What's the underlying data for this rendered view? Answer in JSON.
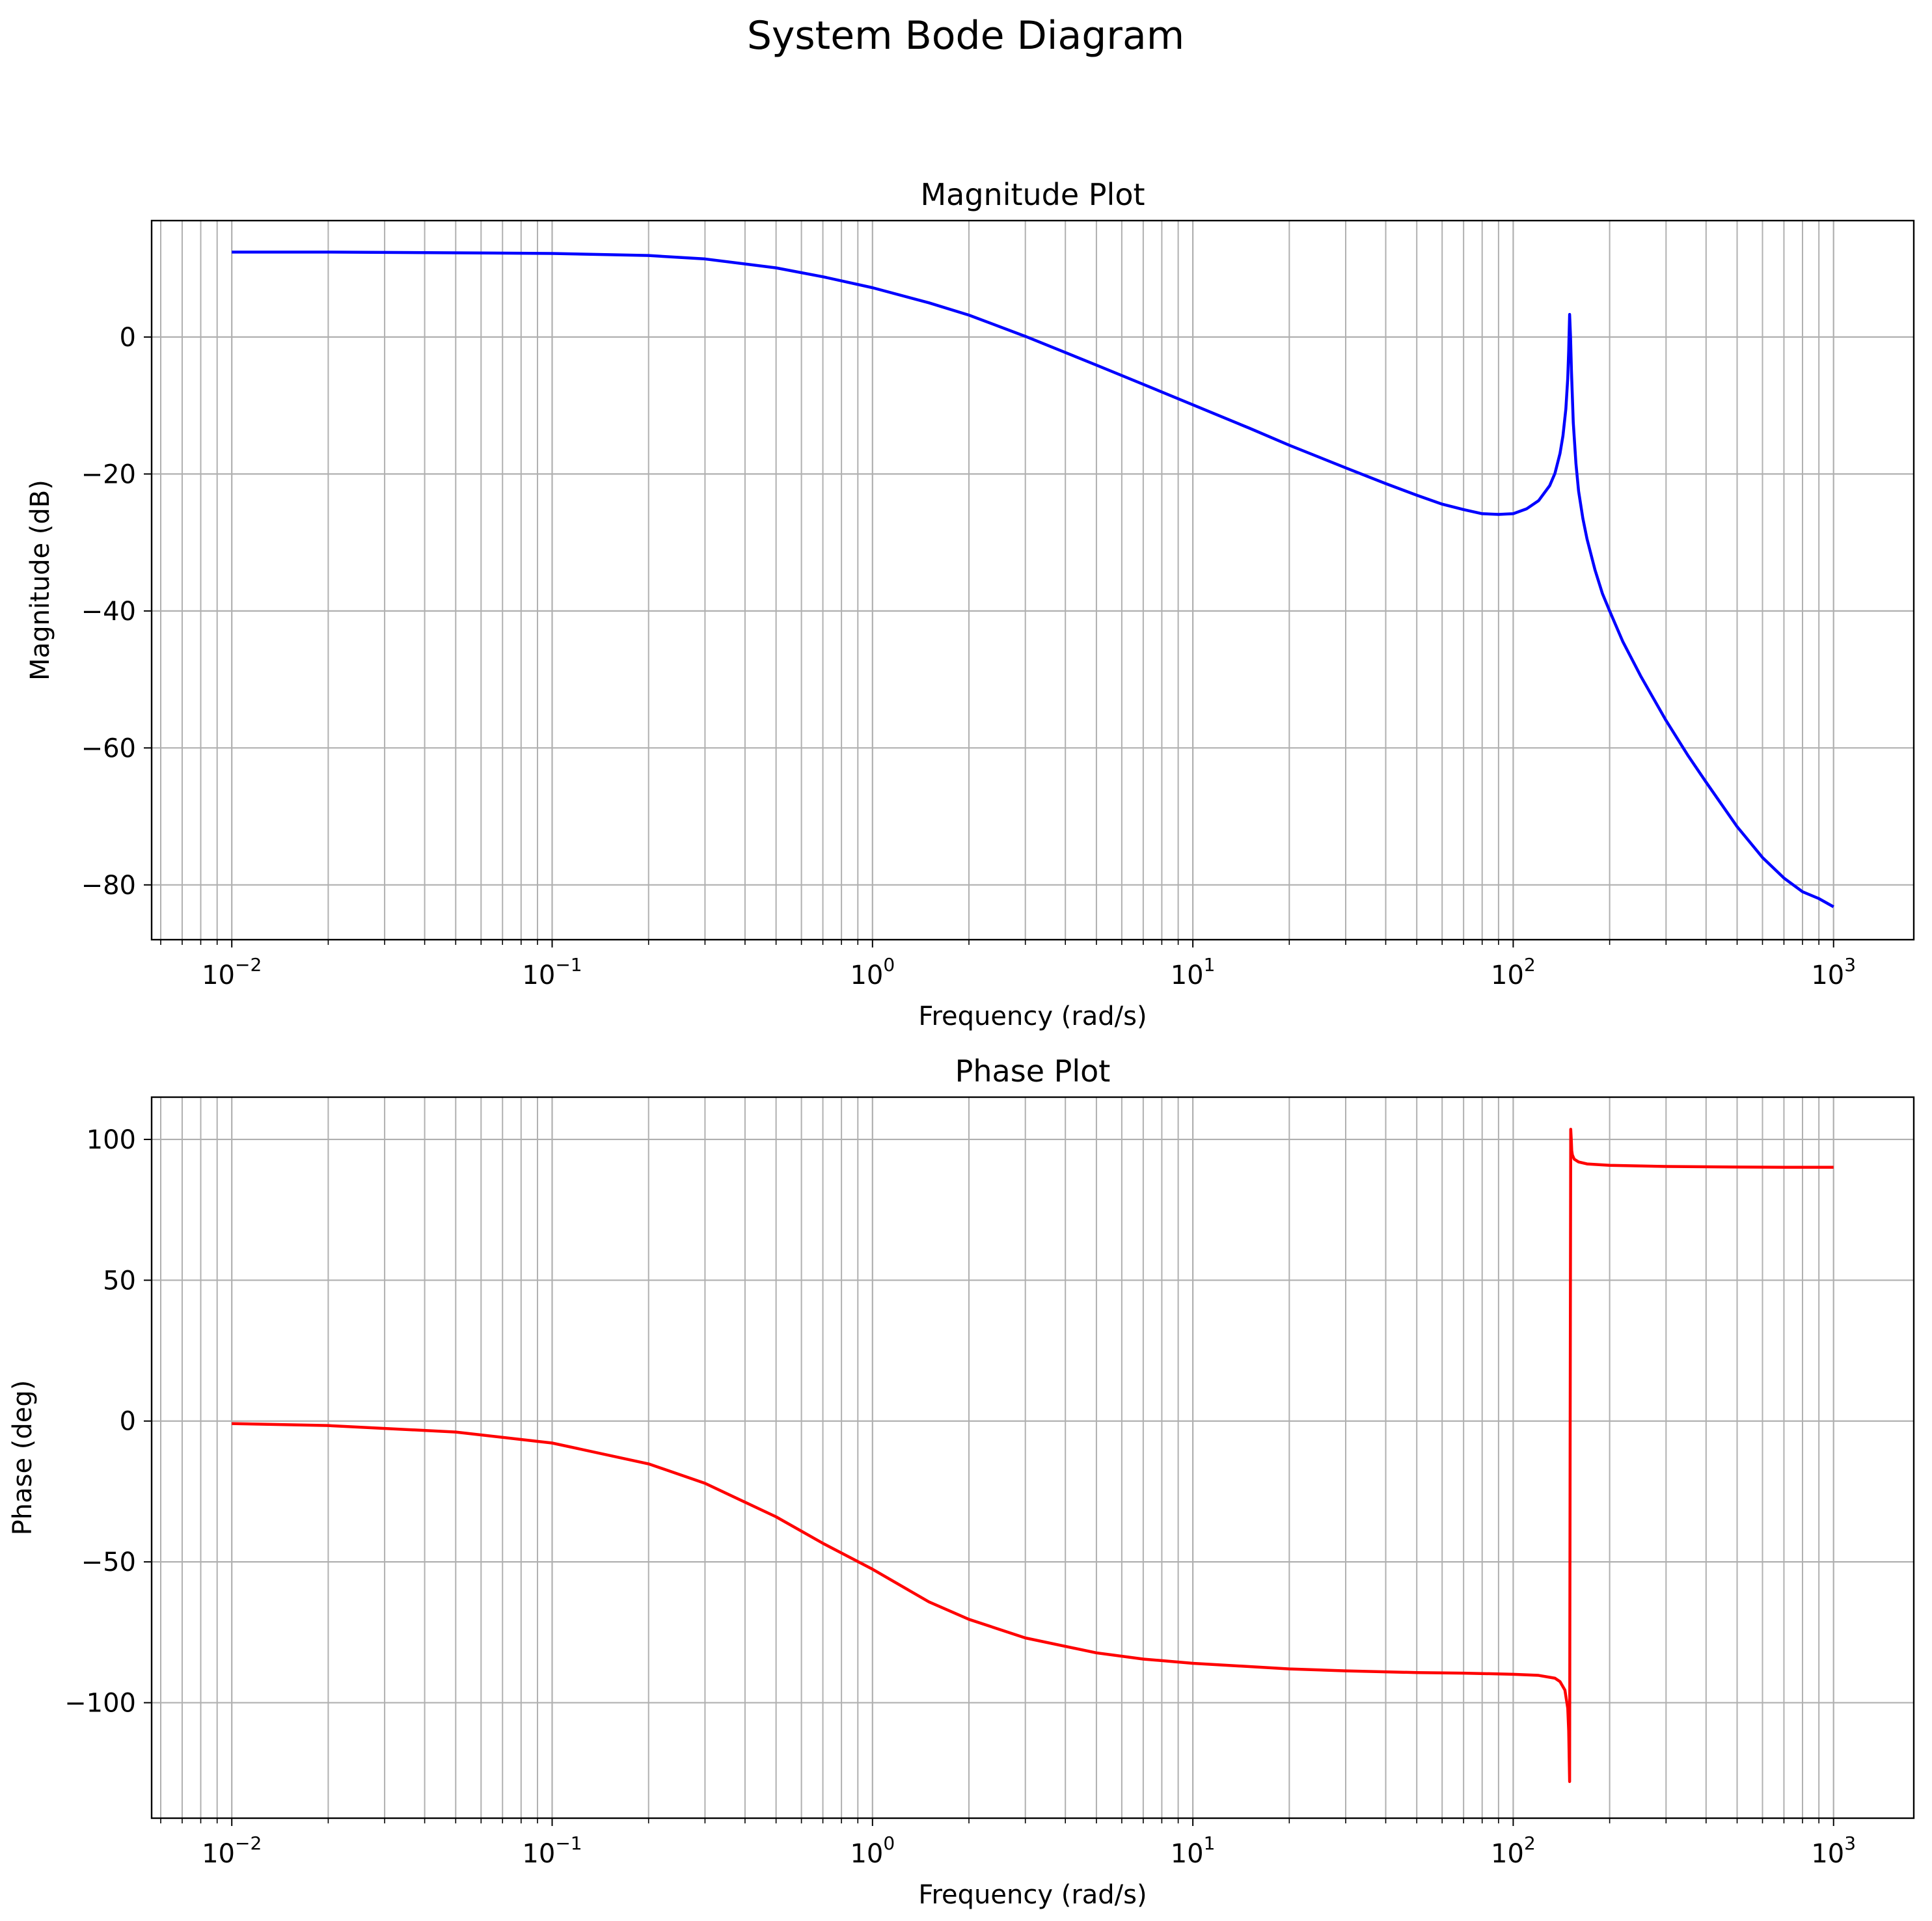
{
  "suptitle": "System Bode Diagram",
  "colors": {
    "magnitude": "#0000ff",
    "phase": "#ff0000",
    "grid": "#b0b0b0",
    "axes": "#000000"
  },
  "chart_data": [
    {
      "type": "line",
      "title": "Magnitude Plot",
      "xlabel": "Frequency (rad/s)",
      "ylabel": "Magnitude (dB)",
      "xscale": "log",
      "xlim": [
        0.00562,
        1780
      ],
      "ylim": [
        -88,
        17
      ],
      "xticks": [
        0.01,
        0.1,
        1,
        10,
        100,
        1000
      ],
      "xtick_labels": [
        [
          "10",
          "−2"
        ],
        [
          "10",
          "−1"
        ],
        [
          "10",
          "0"
        ],
        [
          "10",
          "1"
        ],
        [
          "10",
          "2"
        ],
        [
          "10",
          "3"
        ]
      ],
      "yticks": [
        0,
        -20,
        -40,
        -60,
        -80
      ],
      "ytick_labels": [
        "0",
        "−20",
        "−40",
        "−60",
        "−80"
      ],
      "grid": true,
      "series": [
        {
          "color": "#0000ff",
          "x": [
            0.01,
            0.02,
            0.05,
            0.1,
            0.2,
            0.3,
            0.5,
            0.7,
            1,
            1.5,
            2,
            3,
            5,
            7,
            10,
            15,
            20,
            30,
            40,
            50,
            60,
            70,
            80,
            90,
            100,
            110,
            120,
            130,
            135,
            140,
            143,
            146,
            148,
            149,
            150,
            151,
            152,
            154,
            157,
            160,
            165,
            170,
            180,
            190,
            200,
            220,
            250,
            300,
            350,
            400,
            500,
            600,
            700,
            800,
            900,
            1000
          ],
          "y": [
            12.4,
            12.4,
            12.3,
            12.2,
            11.9,
            11.4,
            10.1,
            8.8,
            7.2,
            5.0,
            3.2,
            0.1,
            -4.1,
            -6.9,
            -9.9,
            -13.3,
            -15.8,
            -19.1,
            -21.4,
            -23.1,
            -24.4,
            -25.2,
            -25.8,
            -25.9,
            -25.8,
            -25.1,
            -23.9,
            -21.7,
            -19.9,
            -17.0,
            -14.4,
            -10.5,
            -6.0,
            -2.0,
            3.3,
            0.0,
            -5.0,
            -12.5,
            -18.5,
            -22.5,
            -26.5,
            -29.5,
            -34.0,
            -37.5,
            -40.0,
            -44.5,
            -49.5,
            -56.0,
            -61.0,
            -65.0,
            -71.5,
            -76.0,
            -79.0,
            -81.0,
            -82.0,
            -83.2
          ]
        }
      ]
    },
    {
      "type": "line",
      "title": "Phase Plot",
      "xlabel": "Frequency (rad/s)",
      "ylabel": "Phase (deg)",
      "xscale": "log",
      "xlim": [
        0.00562,
        1780
      ],
      "ylim": [
        -141,
        115
      ],
      "xticks": [
        0.01,
        0.1,
        1,
        10,
        100,
        1000
      ],
      "xtick_labels": [
        [
          "10",
          "−2"
        ],
        [
          "10",
          "−1"
        ],
        [
          "10",
          "0"
        ],
        [
          "10",
          "1"
        ],
        [
          "10",
          "2"
        ],
        [
          "10",
          "3"
        ]
      ],
      "yticks": [
        100,
        50,
        0,
        -50,
        -100
      ],
      "ytick_labels": [
        "100",
        "50",
        "0",
        "−50",
        "−100"
      ],
      "grid": true,
      "series": [
        {
          "color": "#ff0000",
          "x": [
            0.01,
            0.02,
            0.05,
            0.1,
            0.2,
            0.3,
            0.5,
            0.7,
            1,
            1.5,
            2,
            3,
            5,
            7,
            10,
            20,
            30,
            50,
            70,
            100,
            120,
            135,
            140,
            145,
            148,
            149,
            150,
            150.6,
            151.2,
            151.8,
            152.3,
            153,
            155,
            160,
            170,
            200,
            300,
            500,
            700,
            1000
          ],
          "y": [
            -0.9,
            -1.6,
            -3.9,
            -7.8,
            -15.2,
            -22.1,
            -34.0,
            -43.4,
            -52.6,
            -64.2,
            -70.4,
            -77.0,
            -82.3,
            -84.5,
            -86.0,
            -88.0,
            -88.7,
            -89.3,
            -89.5,
            -89.9,
            -90.3,
            -91.3,
            -92.5,
            -95.5,
            -102.0,
            -110.0,
            -128.0,
            0.0,
            103.6,
            100.0,
            96.0,
            94.5,
            93.0,
            92.0,
            91.3,
            90.8,
            90.4,
            90.2,
            90.1,
            90.1
          ]
        }
      ]
    }
  ]
}
